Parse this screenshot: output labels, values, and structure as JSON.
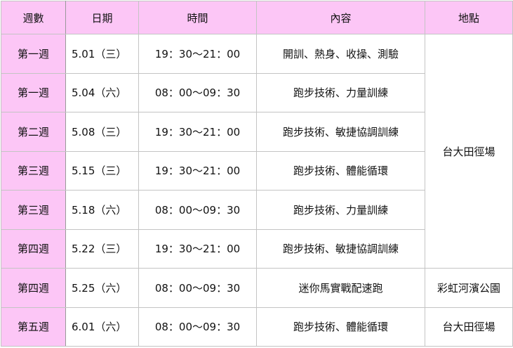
{
  "headers": {
    "week": "週數",
    "date": "日期",
    "time": "時間",
    "content": "內容",
    "place": "地點"
  },
  "rows": [
    {
      "week": "第一週",
      "date": "5.01（三）",
      "time": "19：30～21：00",
      "content": "開訓、熱身、收操、測驗"
    },
    {
      "week": "第一週",
      "date": "5.04（六）",
      "time": "08：00～09：30",
      "content": "跑步技術、力量訓練"
    },
    {
      "week": "第二週",
      "date": "5.08（三）",
      "time": "19：30～21：00",
      "content": "跑步技術、敏捷協調訓練"
    },
    {
      "week": "第三週",
      "date": "5.15（三）",
      "time": "19：30～21：00",
      "content": "跑步技術、體能循環"
    },
    {
      "week": "第三週",
      "date": "5.18（六）",
      "time": "08：00～09：30",
      "content": "跑步技術、力量訓練"
    },
    {
      "week": "第四週",
      "date": "5.22（三）",
      "time": "19：30～21：00",
      "content": "跑步技術、敏捷協調訓練"
    },
    {
      "week": "第四週",
      "date": "5.25（六）",
      "time": "08：00～09：30",
      "content": "迷你馬實戰配速跑"
    },
    {
      "week": "第五週",
      "date": "6.01（六）",
      "time": "08：00～09：30",
      "content": "跑步技術、體能循環"
    }
  ],
  "places": [
    "台大田徑場",
    "彩虹河濱公園",
    "台大田徑場"
  ],
  "colors": {
    "header_bg": "#fcc6f6",
    "border": "#c4c4c4"
  }
}
